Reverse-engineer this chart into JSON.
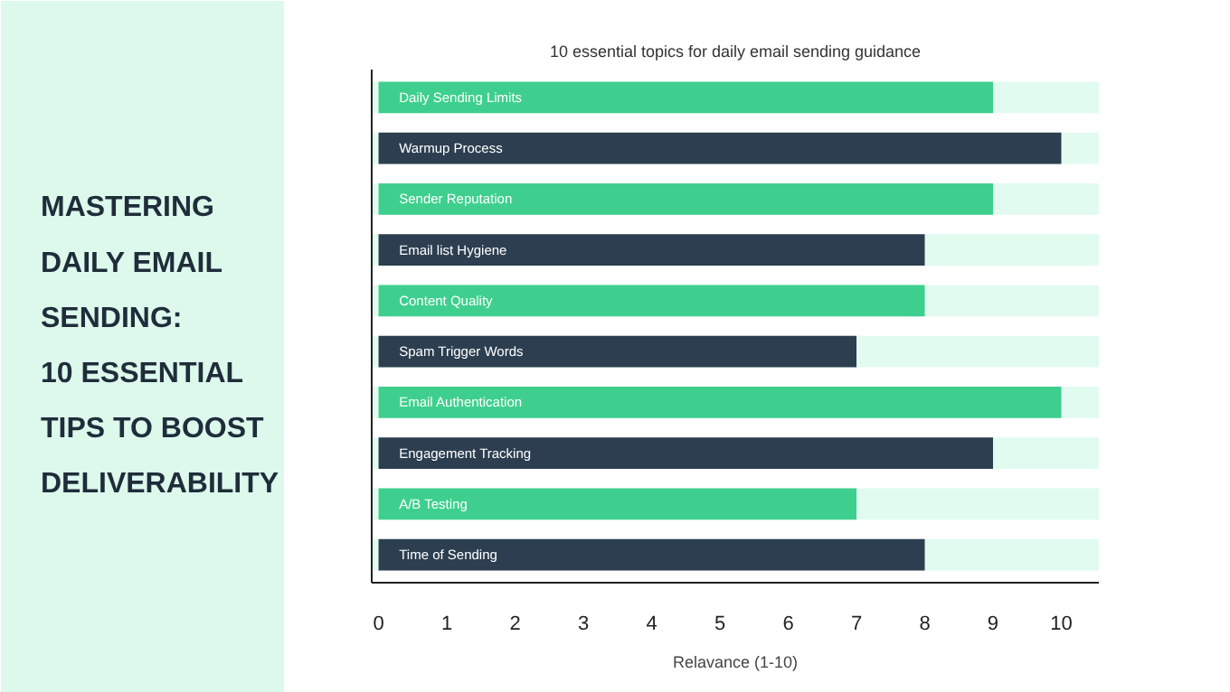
{
  "chart_data": {
    "type": "bar",
    "orientation": "horizontal",
    "title": "MASTERING\nDAILY EMAIL\nSENDING:\n10 ESSENTIAL\nTIPS TO BOOST\nDELIVERABILITY",
    "subtitle": "10 essential topics for daily email sending guidance",
    "xlabel": "Relavance (1-10)",
    "categories": [
      "Daily Sending Limits",
      "Warmup Process",
      "Sender Reputation",
      "Email list Hygiene",
      "Content Quality",
      "Spam Trigger Words",
      "Email Authentication",
      "Engagement Tracking",
      "A/B Testing",
      "Time of Sending"
    ],
    "values": [
      9,
      10,
      9,
      8,
      8,
      7,
      10,
      9,
      7,
      8
    ],
    "colors": [
      "#3ecf8e",
      "#2c3e50",
      "#3ecf8e",
      "#2c3e50",
      "#3ecf8e",
      "#2c3e50",
      "#3ecf8e",
      "#2c3e50",
      "#3ecf8e",
      "#2c3e50"
    ],
    "xlim": [
      -0.1,
      10.55
    ],
    "xticks": [
      0,
      1,
      2,
      3,
      4,
      5,
      6,
      7,
      8,
      9,
      10
    ],
    "grid": false
  }
}
